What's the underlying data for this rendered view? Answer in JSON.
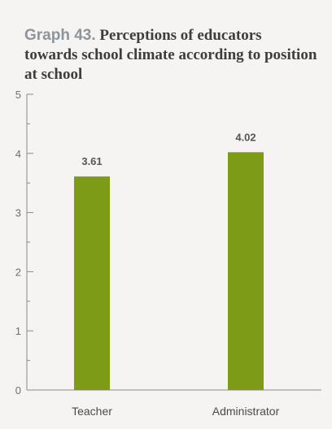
{
  "title_prefix": "Graph 43.",
  "title_text": "Perceptions of educators towards school climate according to position at school",
  "colors": {
    "bar": "#7c9b17",
    "axis": "#8a8a8a"
  },
  "chart_data": {
    "type": "bar",
    "title": "Graph 43. Perceptions of educators towards school climate according to position at school",
    "categories": [
      "Teacher",
      "Administrator"
    ],
    "values": [
      3.61,
      4.02
    ],
    "data_labels": [
      "3.61",
      "4.02"
    ],
    "ylim": [
      0,
      5
    ],
    "y_ticks": [
      0,
      1,
      2,
      3,
      4,
      5
    ],
    "y_tick_labels": [
      "0",
      "1",
      "2",
      "3",
      "4",
      "5"
    ],
    "grid": false,
    "legend": "none"
  }
}
